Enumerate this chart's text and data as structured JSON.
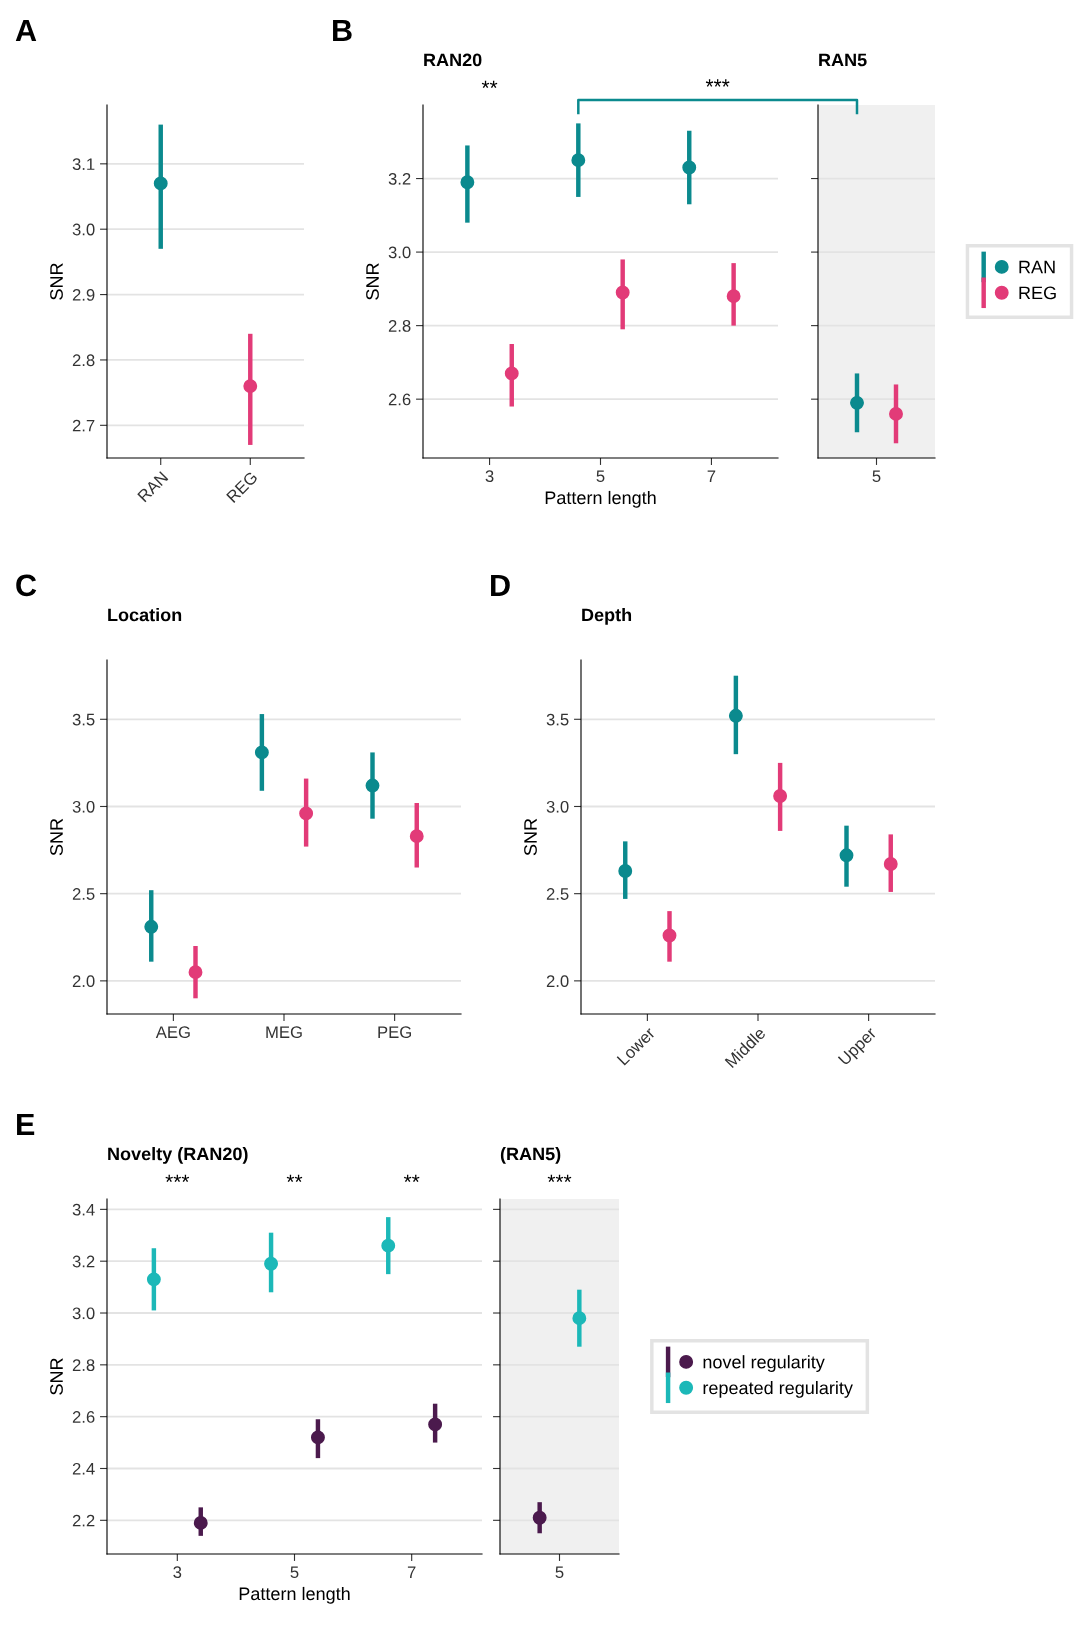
{
  "chart_data": [
    {
      "type": "scatter",
      "annotations": [
        "A"
      ],
      "ylabel": "SNR",
      "categories": [
        "RAN",
        "REG"
      ],
      "marker": "circle",
      "grid": "y",
      "ylim": [
        2.65,
        3.19
      ],
      "yticks": [
        2.7,
        2.8,
        2.9,
        {
          "value": 3,
          "label": "3.0"
        },
        3.1
      ],
      "series": [
        {
          "colors": [
            "#0b8a8e",
            "#e23b78"
          ],
          "values": [
            3.07,
            2.76
          ],
          "errors": [
            [
              2.97,
              3.16
            ],
            [
              2.67,
              2.84
            ]
          ]
        }
      ]
    },
    {
      "type": "scatter",
      "title": "RAN20",
      "annotations": [
        "B",
        "**"
      ],
      "xlabel": "Pattern length",
      "ylabel": "SNR",
      "categories": [
        "3",
        "5",
        "7"
      ],
      "marker": "circle",
      "grid": "y",
      "ylim": [
        2.44,
        3.4
      ],
      "yticks": [
        2.6,
        2.8,
        {
          "value": 3,
          "label": "3.0"
        },
        3.2
      ],
      "series": [
        {
          "color": "#0b8a8e",
          "values": [
            3.19,
            3.25,
            3.23
          ],
          "errors": [
            [
              3.08,
              3.29
            ],
            [
              3.15,
              3.35
            ],
            [
              3.13,
              3.33
            ]
          ]
        },
        {
          "color": "#e23b78",
          "values": [
            2.67,
            2.89,
            2.88
          ],
          "errors": [
            [
              2.58,
              2.75
            ],
            [
              2.79,
              2.98
            ],
            [
              2.8,
              2.97
            ]
          ]
        }
      ]
    },
    {
      "type": "scatter",
      "title": "RAN5",
      "annotations": [
        "***"
      ],
      "categories": [
        "5"
      ],
      "marker": "circle",
      "grid": "y",
      "legend": "right",
      "tick_labels": "x",
      "ylim": [
        2.44,
        3.4
      ],
      "yticks": [
        {
          "value": 2.6,
          "label": null
        },
        {
          "value": 2.8,
          "label": null
        },
        {
          "value": 3,
          "label": null
        },
        {
          "value": 3.2,
          "label": null
        }
      ],
      "series": [
        {
          "name": "RAN",
          "color": "#0b8a8e",
          "values": [
            2.59
          ],
          "errors": [
            [
              2.51,
              2.67
            ]
          ]
        },
        {
          "name": "REG",
          "color": "#e23b78",
          "values": [
            2.56
          ],
          "errors": [
            [
              2.48,
              2.64
            ]
          ]
        }
      ]
    },
    {
      "type": "scatter",
      "title": "Location",
      "annotations": [
        "C"
      ],
      "ylabel": "SNR",
      "categories": [
        "AEG",
        "MEG",
        "PEG"
      ],
      "marker": "circle",
      "grid": "y",
      "ylim": [
        1.81,
        3.84
      ],
      "yticks": [
        {
          "value": 2,
          "label": "2.0"
        },
        2.5,
        {
          "value": 3,
          "label": "3.0"
        },
        3.5
      ],
      "series": [
        {
          "color": "#0b8a8e",
          "values": [
            2.31,
            3.31,
            3.12
          ],
          "errors": [
            [
              2.11,
              2.52
            ],
            [
              3.09,
              3.53
            ],
            [
              2.93,
              3.31
            ]
          ]
        },
        {
          "color": "#e23b78",
          "values": [
            2.05,
            2.96,
            2.83
          ],
          "errors": [
            [
              1.9,
              2.2
            ],
            [
              2.77,
              3.16
            ],
            [
              2.65,
              3.02
            ]
          ]
        }
      ]
    },
    {
      "type": "scatter",
      "title": "Depth",
      "annotations": [
        "D"
      ],
      "ylabel": "SNR",
      "categories": [
        "Lower",
        "Middle",
        "Upper"
      ],
      "marker": "circle",
      "grid": "y",
      "ylim": [
        1.81,
        3.84
      ],
      "yticks": [
        {
          "value": 2,
          "label": "2.0"
        },
        2.5,
        {
          "value": 3,
          "label": "3.0"
        },
        3.5
      ],
      "series": [
        {
          "color": "#0b8a8e",
          "values": [
            2.63,
            3.52,
            2.72
          ],
          "errors": [
            [
              2.47,
              2.8
            ],
            [
              3.3,
              3.75
            ],
            [
              2.54,
              2.89
            ]
          ]
        },
        {
          "color": "#e23b78",
          "values": [
            2.26,
            3.06,
            2.67
          ],
          "errors": [
            [
              2.11,
              2.4
            ],
            [
              2.86,
              3.25
            ],
            [
              2.51,
              2.84
            ]
          ]
        }
      ]
    },
    {
      "type": "scatter",
      "title": "Novelty (RAN20)",
      "annotations": [
        "E",
        "***",
        "**",
        "**"
      ],
      "xlabel": "Pattern length",
      "ylabel": "SNR",
      "categories": [
        "3",
        "5",
        "7"
      ],
      "marker": "circle",
      "grid": "y",
      "ylim": [
        2.07,
        3.44
      ],
      "yticks": [
        2.2,
        2.4,
        2.6,
        2.8,
        {
          "value": 3,
          "label": "3.0"
        },
        3.2,
        3.4
      ],
      "series": [
        {
          "color": "#1cb8b8",
          "values": [
            3.13,
            3.19,
            3.26
          ],
          "errors": [
            [
              3.01,
              3.25
            ],
            [
              3.08,
              3.31
            ],
            [
              3.15,
              3.37
            ]
          ]
        },
        {
          "color": "#4b1a4d",
          "values": [
            2.19,
            2.52,
            2.57
          ],
          "errors": [
            [
              2.14,
              2.25
            ],
            [
              2.44,
              2.59
            ],
            [
              2.5,
              2.65
            ]
          ]
        }
      ]
    },
    {
      "type": "scatter",
      "title": "(RAN5)",
      "annotations": [
        "***"
      ],
      "categories": [
        "5"
      ],
      "marker": "circle",
      "grid": "y",
      "legend": "right",
      "tick_labels": "x",
      "ylim": [
        2.07,
        3.44
      ],
      "yticks": [
        {
          "value": 2.2,
          "label": null
        },
        {
          "value": 2.4,
          "label": null
        },
        {
          "value": 2.6,
          "label": null
        },
        {
          "value": 2.8,
          "label": null
        },
        {
          "value": 3,
          "label": null
        },
        {
          "value": 3.2,
          "label": null
        },
        {
          "value": 3.4,
          "label": null
        }
      ],
      "series": [
        {
          "name": "novel regularity",
          "color": "#4b1a4d",
          "values": [
            2.21
          ],
          "errors": [
            [
              2.15,
              2.27
            ]
          ]
        },
        {
          "name": "repeated regularity",
          "color": "#1cb8b8",
          "values": [
            2.98
          ],
          "errors": [
            [
              2.87,
              3.09
            ]
          ]
        }
      ]
    }
  ]
}
